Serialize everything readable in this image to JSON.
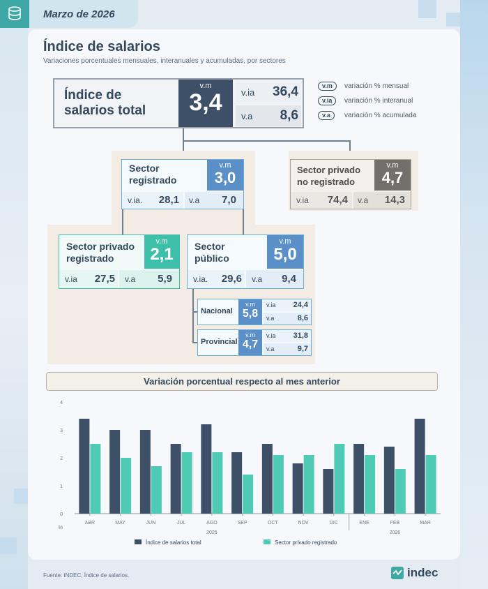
{
  "header": {
    "date": "Marzo de 2026"
  },
  "page": {
    "title": "Índice de salarios",
    "subtitle": "Variaciones porcentuales mensuales, interanuales y acumuladas, por sectores"
  },
  "total": {
    "label_line1": "Índice de",
    "label_line2": "salarios total",
    "vm_label": "v.m",
    "vm": "3,4",
    "via_label": "v.ia",
    "via": "36,4",
    "va_label": "v.a",
    "va": "8,6"
  },
  "legend": [
    {
      "tag": "v.m",
      "text": "variación % mensual"
    },
    {
      "tag": "v.ia",
      "text": "variación % interanual"
    },
    {
      "tag": "v.a",
      "text": "variación % acumulada"
    }
  ],
  "registrado": {
    "label_line1": "Sector",
    "label_line2": "registrado",
    "vm_label": "v.m",
    "vm": "3,0",
    "via_label": "v.ia.",
    "via": "28,1",
    "va_label": "v.a",
    "va": "7,0"
  },
  "no_registrado": {
    "label_line1": "Sector privado",
    "label_line2": "no registrado",
    "vm_label": "v.m",
    "vm": "4,7",
    "via_label": "v.ia",
    "via": "74,4",
    "va_label": "v.a",
    "va": "14,3"
  },
  "privado_registrado": {
    "label_line1": "Sector privado",
    "label_line2": "registrado",
    "vm_label": "v.m",
    "vm": "2,1",
    "via_label": "v.ia",
    "via": "27,5",
    "va_label": "v.a",
    "va": "5,9"
  },
  "publico": {
    "label_line1": "Sector",
    "label_line2": "público",
    "vm_label": "v.m",
    "vm": "5,0",
    "via_label": "v.ia.",
    "via": "29,6",
    "va_label": "v.a",
    "va": "9,4"
  },
  "nacional": {
    "label": "Nacional",
    "vm_label": "v.m",
    "vm": "5,8",
    "via_label": "v.ia",
    "via": "24,4",
    "va_label": "v.a",
    "va": "8,6"
  },
  "provincial": {
    "label": "Provincial",
    "vm_label": "v.m",
    "vm": "4,7",
    "via_label": "v.ia",
    "via": "31,8",
    "va_label": "v.a",
    "va": "9,7"
  },
  "chart_data": {
    "type": "bar",
    "title": "Variación porcentual respecto al mes anterior",
    "ylabel": "%",
    "ylim": [
      0,
      4
    ],
    "yticks": [
      "0",
      "1",
      "2",
      "3",
      "4"
    ],
    "categories": [
      "ABR",
      "MAY",
      "JUN",
      "JUL",
      "AGO",
      "SEP",
      "OCT",
      "NOV",
      "DIC",
      "ENE",
      "FEB",
      "MAR"
    ],
    "year_labels": [
      "2025",
      "2026"
    ],
    "series": [
      {
        "name": "Índice de salarios total",
        "color": "#3d5068",
        "values": [
          3.4,
          3.0,
          3.0,
          2.5,
          3.2,
          2.2,
          2.5,
          1.8,
          1.6,
          2.5,
          2.4,
          3.4
        ]
      },
      {
        "name": "Sector privado registrado",
        "color": "#4fcab5",
        "values": [
          2.5,
          2.0,
          1.7,
          2.2,
          2.2,
          1.4,
          2.1,
          2.1,
          2.5,
          2.1,
          1.6,
          2.1
        ]
      }
    ],
    "grid": false,
    "legend_position": "bottom"
  },
  "footer": {
    "source": "Fuente: INDEC, Índice de salarios.",
    "brand": "indec"
  }
}
